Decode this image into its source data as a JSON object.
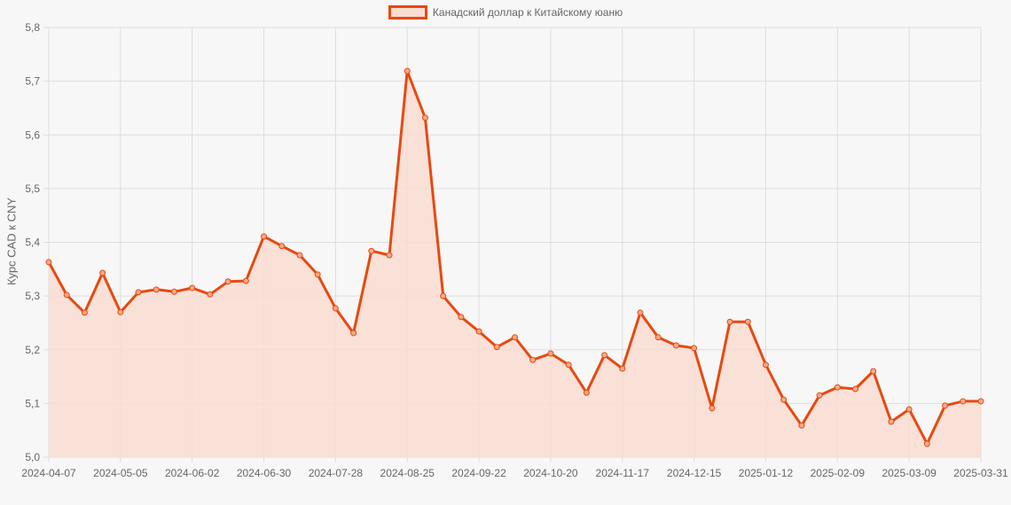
{
  "chart_data": {
    "type": "area",
    "title": "",
    "legend": [
      "Канадский доллар к Китайскому юаню"
    ],
    "legend_position": "top",
    "xlabel": "",
    "ylabel": "Курс CAD к CNY",
    "ylim": [
      5.0,
      5.8
    ],
    "yticks": [
      "5,0",
      "5,1",
      "5,2",
      "5,3",
      "5,4",
      "5,5",
      "5,6",
      "5,7",
      "5,8"
    ],
    "xtick_labels": [
      "2024-04-07",
      "2024-05-05",
      "2024-06-02",
      "2024-06-30",
      "2024-07-28",
      "2024-08-25",
      "2024-09-22",
      "2024-10-20",
      "2024-11-17",
      "2024-12-15",
      "2025-01-12",
      "2025-02-09",
      "2025-03-09",
      "2025-03-31"
    ],
    "grid": true,
    "colors": {
      "line": "#e8490f",
      "fill": "#f9ddd2",
      "grid": "#dddddd",
      "background": "#f7f7f7"
    },
    "series": [
      {
        "name": "Канадский доллар к Китайскому юаню",
        "values": [
          5.363,
          5.302,
          5.269,
          5.343,
          5.27,
          5.307,
          5.312,
          5.308,
          5.315,
          5.303,
          5.327,
          5.328,
          5.411,
          5.393,
          5.376,
          5.34,
          5.277,
          5.231,
          5.384,
          5.376,
          5.719,
          5.632,
          5.3,
          5.261,
          5.234,
          5.205,
          5.223,
          5.181,
          5.193,
          5.172,
          5.12,
          5.19,
          5.165,
          5.269,
          5.223,
          5.208,
          5.203,
          5.091,
          5.252,
          5.252,
          5.172,
          5.107,
          5.059,
          5.115,
          5.13,
          5.127,
          5.16,
          5.066,
          5.089,
          5.025,
          5.096,
          5.104,
          5.104
        ]
      }
    ]
  },
  "legend": {
    "label": "Канадский доллар к Китайскому юаню"
  },
  "axis": {
    "ylabel": "Курс CAD к CNY"
  }
}
